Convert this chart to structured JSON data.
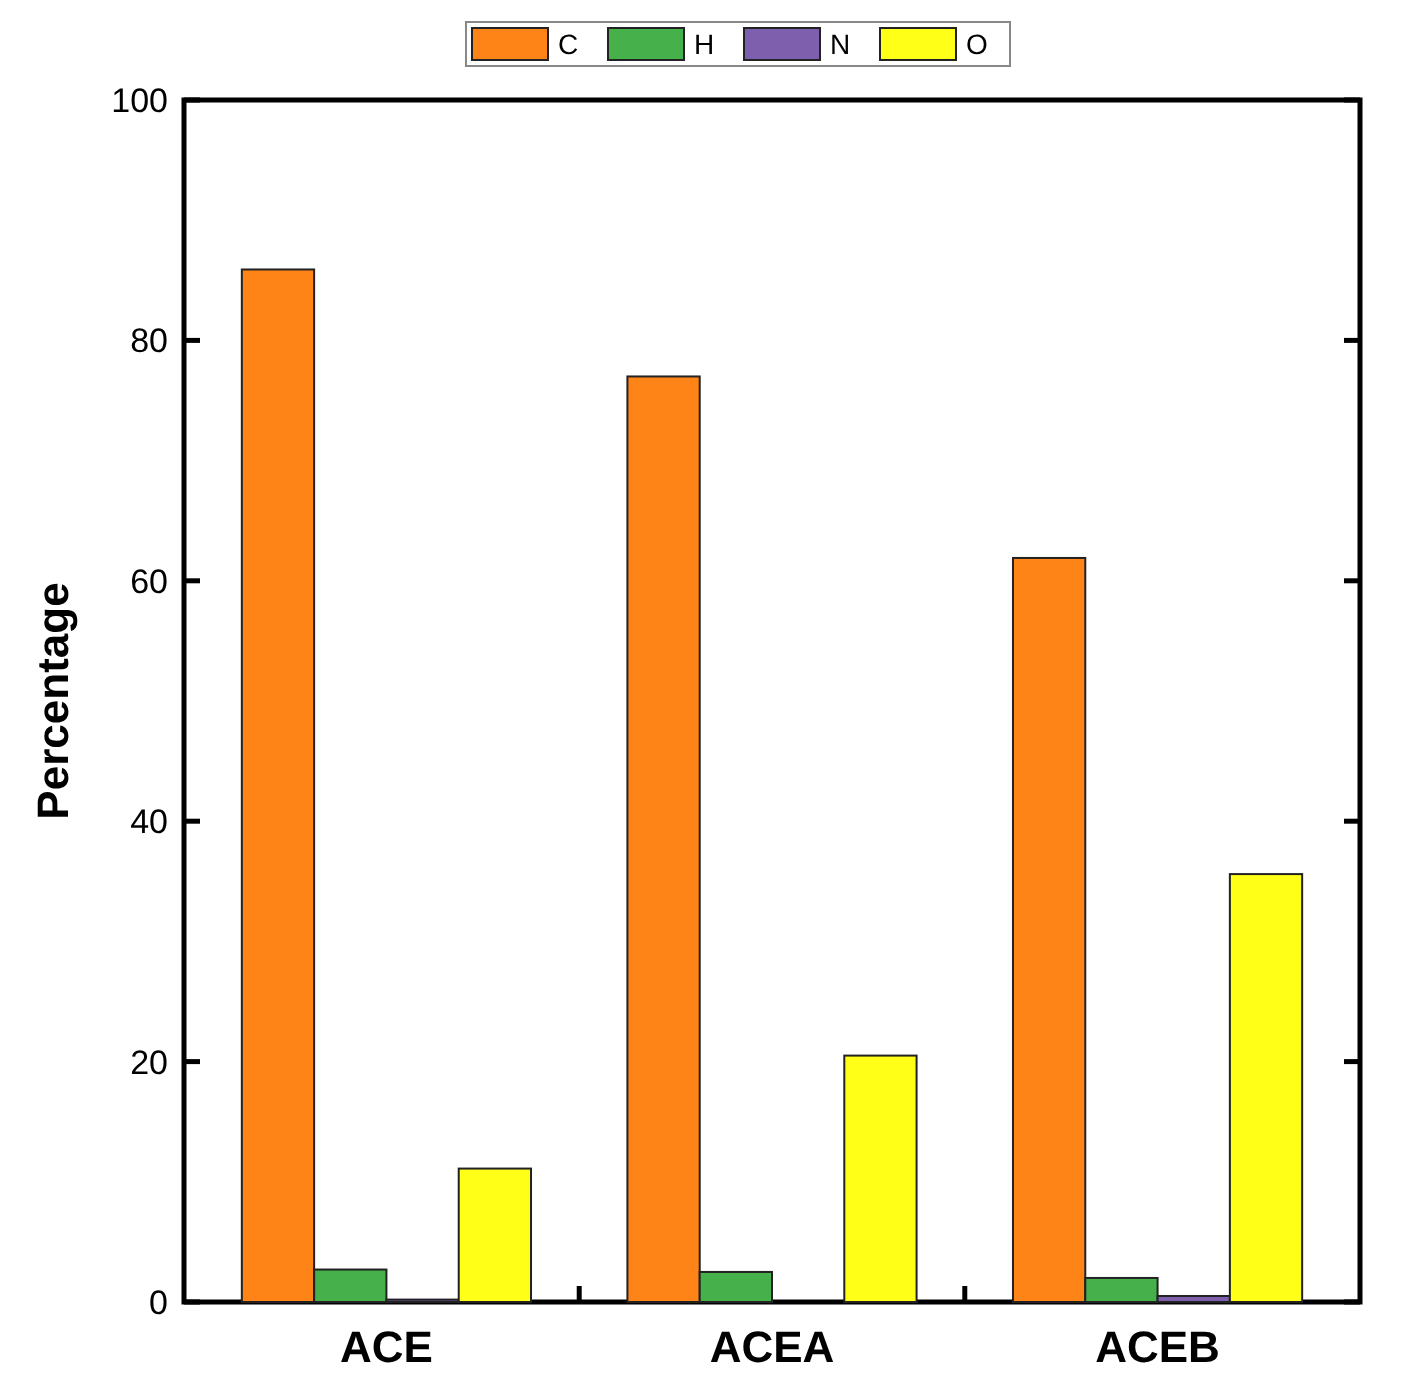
{
  "chart_data": {
    "type": "bar",
    "ylabel": "Percentage",
    "categories": [
      "ACE",
      "ACEA",
      "ACEB"
    ],
    "series": [
      {
        "name": "C",
        "color": "#ff8418",
        "values": [
          85.9,
          77,
          61.9
        ]
      },
      {
        "name": "H",
        "color": "#46b04a",
        "values": [
          2.7,
          2.5,
          2
        ]
      },
      {
        "name": "N",
        "color": "#7e5fae",
        "values": [
          0.2,
          0,
          0.5
        ]
      },
      {
        "name": "O",
        "color": "#ffff18",
        "values": [
          11.1,
          20.5,
          35.6
        ]
      }
    ],
    "ylim": [
      0,
      100
    ],
    "yticks": [
      0,
      20,
      40,
      60,
      80,
      100
    ],
    "legend": "top",
    "grid": false
  }
}
